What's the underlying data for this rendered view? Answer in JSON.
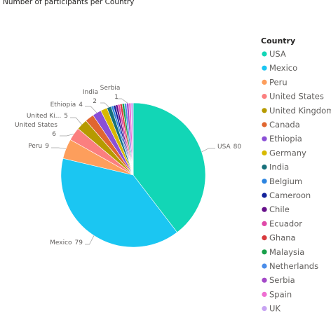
{
  "chart_data": {
    "type": "pie",
    "title": "Number of participants per Country",
    "legend_title": "Country",
    "categories": [
      "USA",
      "Mexico",
      "Peru",
      "United States",
      "United Kingdom",
      "Canada",
      "Ethiopia",
      "Germany",
      "India",
      "Belgium",
      "Cameroon",
      "Chile",
      "Ecuador",
      "Ghana",
      "Malaysia",
      "Netherlands",
      "Serbia",
      "Spain",
      "UK"
    ],
    "values": [
      80,
      79,
      9,
      6,
      5,
      4,
      4,
      3,
      2,
      1,
      1,
      1,
      1,
      1,
      1,
      1,
      1,
      1,
      1
    ],
    "slice_labels": [
      "USA",
      "Mexico",
      "Peru",
      "United States",
      "United Ki...",
      null,
      "Ethiopia",
      null,
      "India",
      null,
      null,
      null,
      null,
      null,
      null,
      null,
      "Serbia",
      null,
      null
    ],
    "colors": [
      "#12d6b6",
      "#1bc6f2",
      "#fd9e5c",
      "#fb7f7f",
      "#b69a00",
      "#e0662f",
      "#8a4fd6",
      "#d8b900",
      "#17707a",
      "#2c84e0",
      "#13219a",
      "#66108a",
      "#e048a8",
      "#d83a3e",
      "#19a04a",
      "#4b8de9",
      "#a449c8",
      "#ef6fd2",
      "#c7a3f2"
    ],
    "legend": "right"
  }
}
